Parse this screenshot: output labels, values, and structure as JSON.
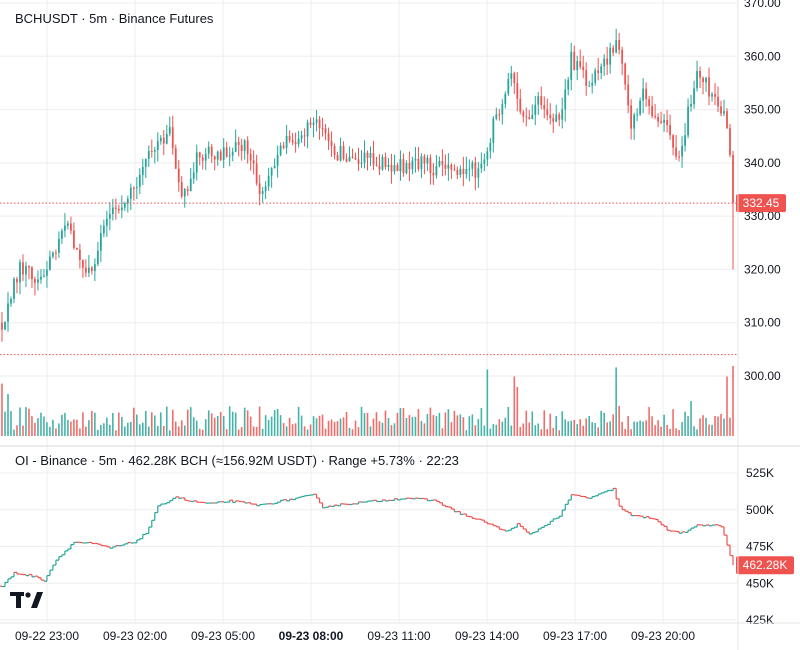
{
  "main_pane": {
    "title": "BCHUSDT · 5m · Binance Futures",
    "last_price_label": "332.45",
    "ref_line_value": 304
  },
  "oi_pane": {
    "title": "OI - Binance · 5m · 462.28K BCH (≈156.92M USDT) · Range +5.73% · 22:23",
    "last_value_label": "462.28K"
  },
  "colors": {
    "up": "#26a69a",
    "down": "#ef5350",
    "grid": "#eeeeee",
    "axis_text": "#131722",
    "price_tag": "#ef5350"
  },
  "chart_data": [
    {
      "type": "candlestick",
      "title": "BCHUSDT · 5m · Binance Futures",
      "x_tick_labels": [
        "09-22 23:00",
        "09-23 02:00",
        "09-23 05:00",
        "09-23 08:00",
        "09-23 11:00",
        "09-23 14:00",
        "09-23 17:00",
        "09-23 20:00"
      ],
      "bold_tick": "09-23 08:00",
      "y_ticks": [
        300,
        310,
        320,
        330,
        340,
        350,
        360,
        370
      ],
      "y_tick_labels": [
        "300.00",
        "310.00",
        "320.00",
        "330.00",
        "340.00",
        "350.00",
        "360.00",
        "370.00"
      ],
      "ylim": [
        297.5,
        371
      ],
      "last_price": 332.45,
      "anchors": [
        {
          "i": 0,
          "p": 310
        },
        {
          "i": 6,
          "p": 320
        },
        {
          "i": 12,
          "p": 318
        },
        {
          "i": 22,
          "p": 328
        },
        {
          "i": 28,
          "p": 318
        },
        {
          "i": 36,
          "p": 330
        },
        {
          "i": 44,
          "p": 336
        },
        {
          "i": 52,
          "p": 344
        },
        {
          "i": 56,
          "p": 346
        },
        {
          "i": 60,
          "p": 333
        },
        {
          "i": 66,
          "p": 342
        },
        {
          "i": 74,
          "p": 342
        },
        {
          "i": 82,
          "p": 343
        },
        {
          "i": 86,
          "p": 334
        },
        {
          "i": 92,
          "p": 342
        },
        {
          "i": 100,
          "p": 346
        },
        {
          "i": 104,
          "p": 348
        },
        {
          "i": 110,
          "p": 342
        },
        {
          "i": 120,
          "p": 341
        },
        {
          "i": 130,
          "p": 339
        },
        {
          "i": 140,
          "p": 340
        },
        {
          "i": 150,
          "p": 338
        },
        {
          "i": 160,
          "p": 339
        },
        {
          "i": 164,
          "p": 347
        },
        {
          "i": 170,
          "p": 358
        },
        {
          "i": 174,
          "p": 348
        },
        {
          "i": 180,
          "p": 352
        },
        {
          "i": 186,
          "p": 347
        },
        {
          "i": 190,
          "p": 360
        },
        {
          "i": 196,
          "p": 354
        },
        {
          "i": 202,
          "p": 360
        },
        {
          "i": 206,
          "p": 362
        },
        {
          "i": 210,
          "p": 348
        },
        {
          "i": 214,
          "p": 353
        },
        {
          "i": 222,
          "p": 346
        },
        {
          "i": 226,
          "p": 341
        },
        {
          "i": 232,
          "p": 357
        },
        {
          "i": 238,
          "p": 352
        },
        {
          "i": 242,
          "p": 348
        },
        {
          "i": 244,
          "p": 332
        }
      ],
      "volume_spikes": [
        {
          "i": 0,
          "h": 0.75
        },
        {
          "i": 2,
          "h": 0.6
        },
        {
          "i": 162,
          "h": 0.95
        },
        {
          "i": 171,
          "h": 0.85
        },
        {
          "i": 172,
          "h": 0.7
        },
        {
          "i": 205,
          "h": 0.98
        },
        {
          "i": 230,
          "h": 0.5
        },
        {
          "i": 242,
          "h": 0.85
        },
        {
          "i": 244,
          "h": 1.0
        }
      ],
      "candle_count": 245
    },
    {
      "type": "line",
      "title": "OI - Binance · 5m · 462.28K BCH (≈156.92M USDT) · Range +5.73% · 22:23",
      "y_ticks": [
        425,
        450,
        475,
        500,
        525
      ],
      "y_tick_labels": [
        "425K",
        "450K",
        "475K",
        "500K",
        "525K"
      ],
      "ylim": [
        424,
        528
      ],
      "last_value": 462.28,
      "anchors": [
        {
          "i": 0,
          "v": 448
        },
        {
          "i": 4,
          "v": 457
        },
        {
          "i": 10,
          "v": 455
        },
        {
          "i": 14,
          "v": 452
        },
        {
          "i": 18,
          "v": 466
        },
        {
          "i": 24,
          "v": 478
        },
        {
          "i": 30,
          "v": 477
        },
        {
          "i": 36,
          "v": 474
        },
        {
          "i": 44,
          "v": 478
        },
        {
          "i": 48,
          "v": 484
        },
        {
          "i": 52,
          "v": 502
        },
        {
          "i": 58,
          "v": 509
        },
        {
          "i": 62,
          "v": 506
        },
        {
          "i": 70,
          "v": 504
        },
        {
          "i": 76,
          "v": 506
        },
        {
          "i": 86,
          "v": 503
        },
        {
          "i": 96,
          "v": 507
        },
        {
          "i": 104,
          "v": 510
        },
        {
          "i": 107,
          "v": 502
        },
        {
          "i": 115,
          "v": 504
        },
        {
          "i": 125,
          "v": 506
        },
        {
          "i": 135,
          "v": 508
        },
        {
          "i": 145,
          "v": 506
        },
        {
          "i": 150,
          "v": 500
        },
        {
          "i": 156,
          "v": 495
        },
        {
          "i": 162,
          "v": 491
        },
        {
          "i": 168,
          "v": 485
        },
        {
          "i": 172,
          "v": 490
        },
        {
          "i": 176,
          "v": 483
        },
        {
          "i": 180,
          "v": 488
        },
        {
          "i": 186,
          "v": 496
        },
        {
          "i": 190,
          "v": 510
        },
        {
          "i": 196,
          "v": 508
        },
        {
          "i": 204,
          "v": 514
        },
        {
          "i": 206,
          "v": 502
        },
        {
          "i": 210,
          "v": 496
        },
        {
          "i": 218,
          "v": 494
        },
        {
          "i": 222,
          "v": 486
        },
        {
          "i": 228,
          "v": 484
        },
        {
          "i": 232,
          "v": 490
        },
        {
          "i": 240,
          "v": 489
        },
        {
          "i": 244,
          "v": 462
        }
      ]
    }
  ]
}
